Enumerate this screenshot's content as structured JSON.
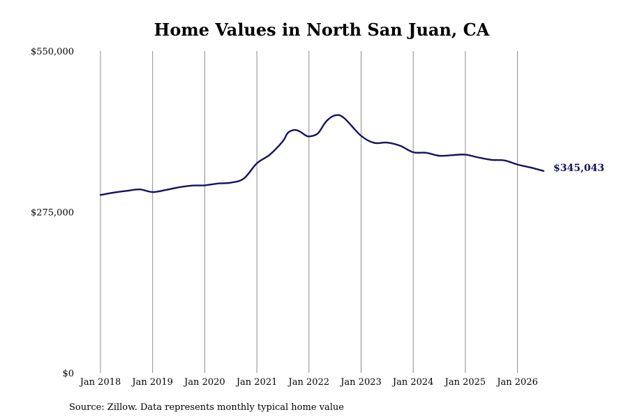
{
  "chart_data": {
    "type": "line",
    "title": "Home Values in North San Juan, CA",
    "source": "Source: Zillow. Data represents monthly typical home value",
    "xlabel": "",
    "ylabel": "",
    "x_ticks": [
      "Jan 2018",
      "Jan 2019",
      "Jan 2020",
      "Jan 2021",
      "Jan 2022",
      "Jan 2023",
      "Jan 2024",
      "Jan 2025",
      "Jan 2026"
    ],
    "y_ticks": [
      "$0",
      "$275,000",
      "$550,000"
    ],
    "ylim": [
      0,
      550000
    ],
    "xlim": [
      "2018-01",
      "2026-08"
    ],
    "grid": "vertical",
    "line_color": "#13135e",
    "end_label": "$345,043",
    "series": [
      {
        "points": [
          [
            "2018-01",
            304000
          ],
          [
            "2018-04",
            308000
          ],
          [
            "2018-07",
            311000
          ],
          [
            "2018-10",
            313500
          ],
          [
            "2019-01",
            309000
          ],
          [
            "2019-04",
            312500
          ],
          [
            "2019-07",
            317000
          ],
          [
            "2019-10",
            320000
          ],
          [
            "2020-01",
            320500
          ],
          [
            "2020-04",
            323500
          ],
          [
            "2020-07",
            325000
          ],
          [
            "2020-10",
            332000
          ],
          [
            "2021-01",
            358000
          ],
          [
            "2021-04",
            373000
          ],
          [
            "2021-07",
            396000
          ],
          [
            "2021-08",
            409000
          ],
          [
            "2021-09",
            414000
          ],
          [
            "2021-10",
            415000
          ],
          [
            "2021-11",
            412000
          ],
          [
            "2021-12",
            407000
          ],
          [
            "2022-01",
            404000
          ],
          [
            "2022-03",
            409000
          ],
          [
            "2022-05",
            430000
          ],
          [
            "2022-07",
            440000
          ],
          [
            "2022-09",
            436000
          ],
          [
            "2023-01",
            405000
          ],
          [
            "2023-04",
            393000
          ],
          [
            "2023-07",
            393500
          ],
          [
            "2023-10",
            388000
          ],
          [
            "2024-01",
            377000
          ],
          [
            "2024-04",
            376000
          ],
          [
            "2024-07",
            371000
          ],
          [
            "2024-10",
            372000
          ],
          [
            "2025-01",
            373000
          ],
          [
            "2025-04",
            368000
          ],
          [
            "2025-07",
            364000
          ],
          [
            "2025-10",
            363000
          ],
          [
            "2026-01",
            356000
          ],
          [
            "2026-04",
            351000
          ],
          [
            "2026-07",
            345043
          ]
        ]
      }
    ]
  }
}
